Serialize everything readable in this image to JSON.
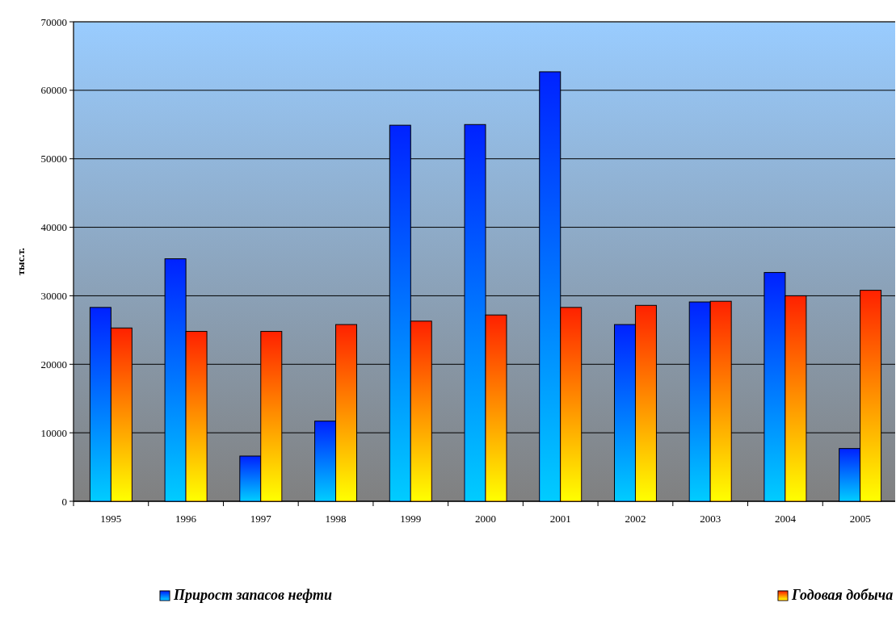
{
  "chart_data": {
    "type": "bar",
    "ylabel": "тыс.т.",
    "categories": [
      "1995",
      "1996",
      "1997",
      "1998",
      "1999",
      "2000",
      "2001",
      "2002",
      "2003",
      "2004",
      "2005"
    ],
    "series": [
      {
        "name": "Прирост запасов нефти",
        "color": "#0022ff",
        "values": [
          28300,
          35400,
          6600,
          11700,
          54900,
          55000,
          62700,
          25800,
          29100,
          33400,
          7700
        ]
      },
      {
        "name": "Годовая добыча",
        "color": "#ff2200",
        "values": [
          25300,
          24800,
          24800,
          25800,
          26300,
          27200,
          28300,
          28600,
          29200,
          30000,
          30800
        ]
      }
    ],
    "ylim": [
      0,
      70000
    ],
    "yticks": [
      0,
      10000,
      20000,
      30000,
      40000,
      50000,
      60000,
      70000
    ],
    "grid": "y",
    "legend": "bottom"
  }
}
